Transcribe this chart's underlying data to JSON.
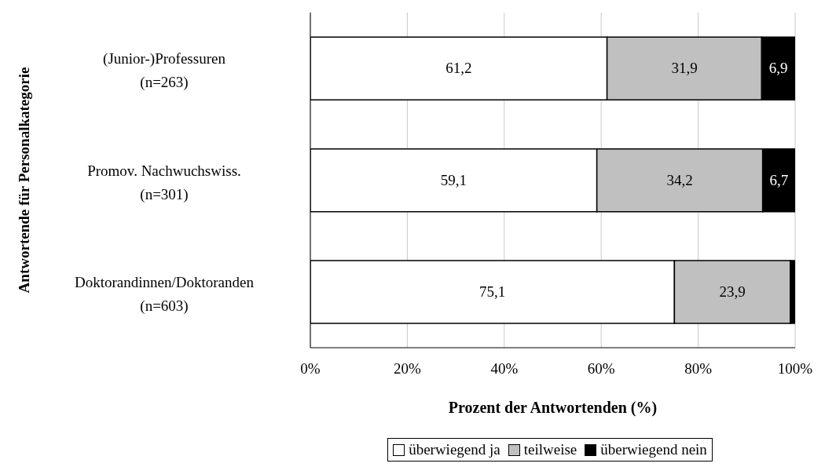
{
  "chart_data": {
    "type": "bar",
    "orientation": "horizontal",
    "stacked": true,
    "categories": [
      "(Junior-)Professuren\n(n=263)",
      "Promov. Nachwuchswiss.\n(n=301)",
      "Doktorandinnen/Doktoranden\n(n=603)"
    ],
    "series": [
      {
        "name": "überwiegend ja",
        "color": "#ffffff",
        "values": [
          61.2,
          59.1,
          75.1
        ],
        "value_labels": [
          "61,2",
          "59,1",
          "75,1"
        ]
      },
      {
        "name": "teilweise",
        "color": "#c0c0c0",
        "values": [
          31.9,
          34.2,
          23.9
        ],
        "value_labels": [
          "31,9",
          "34,2",
          "23,9"
        ]
      },
      {
        "name": "überwiegend nein",
        "color": "#000000",
        "values": [
          6.9,
          6.7,
          1.0
        ],
        "value_labels": [
          "6,9",
          "6,7",
          null
        ]
      }
    ],
    "xlim": [
      0,
      100
    ],
    "xticks": [
      {
        "value": 0,
        "label": "0%"
      },
      {
        "value": 20,
        "label": "20%"
      },
      {
        "value": 40,
        "label": "40%"
      },
      {
        "value": 60,
        "label": "60%"
      },
      {
        "value": 80,
        "label": "80%"
      },
      {
        "value": 100,
        "label": "100%"
      }
    ],
    "xlabel": "Prozent der Antwortenden (%)",
    "ylabel": "Antwortende für  Personalkategorie",
    "grid": "x",
    "legend": "bottom"
  }
}
